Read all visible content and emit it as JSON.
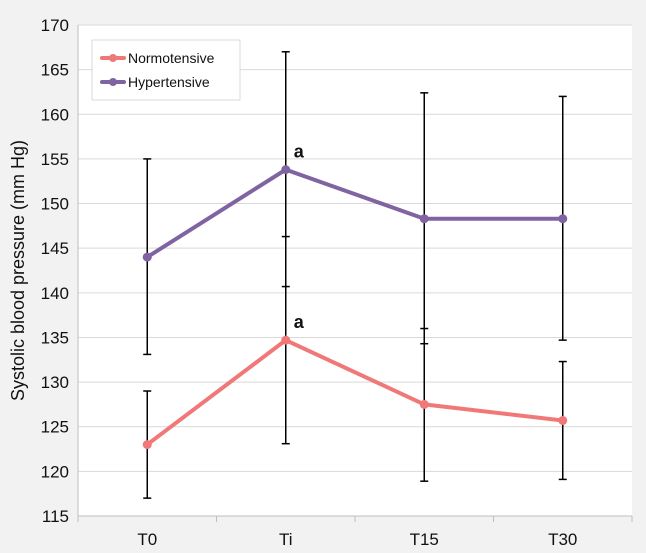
{
  "chart_data": {
    "type": "line",
    "categories": [
      "T0",
      "Ti",
      "T15",
      "T30"
    ],
    "ylabel": "Systolic blood pressure (mm Hg)",
    "xlabel": "",
    "ylim": [
      115,
      170
    ],
    "yticks": [
      115,
      120,
      125,
      130,
      135,
      140,
      145,
      150,
      155,
      160,
      165,
      170
    ],
    "grid": "horizontal",
    "legend_position": "top-left",
    "series": [
      {
        "name": "Normotensive",
        "color": "#f07878",
        "values": [
          123.0,
          134.7,
          127.5,
          125.7
        ],
        "error_upper": [
          129.0,
          146.3,
          136.0,
          132.3
        ],
        "error_lower": [
          117.0,
          123.1,
          118.9,
          119.1
        ]
      },
      {
        "name": "Hypertensive",
        "color": "#8064a2",
        "values": [
          144.0,
          153.8,
          148.3,
          148.3
        ],
        "error_upper": [
          155.0,
          167.0,
          162.4,
          162.0
        ],
        "error_lower": [
          133.1,
          140.7,
          134.3,
          134.7
        ]
      }
    ],
    "annotations": [
      {
        "category": "Ti",
        "series": "Hypertensive",
        "text": "a"
      },
      {
        "category": "Ti",
        "series": "Normotensive",
        "text": "a"
      }
    ]
  }
}
